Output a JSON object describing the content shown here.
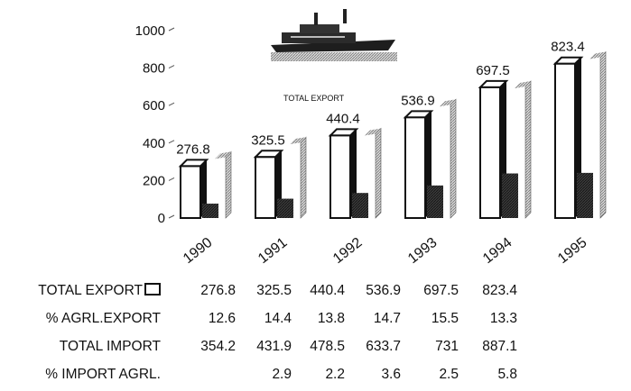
{
  "chart_data": {
    "type": "bar",
    "categories": [
      "1990",
      "1991",
      "1992",
      "1993",
      "1994",
      "1995"
    ],
    "series": [
      {
        "name": "TOTAL EXPORT",
        "values": [
          276.8,
          325.5,
          440.4,
          536.9,
          697.5,
          823.4
        ]
      },
      {
        "name": "% AGRL.EXPORT",
        "values": [
          12.6,
          14.4,
          13.8,
          14.7,
          15.5,
          13.3
        ]
      },
      {
        "name": "TOTAL IMPORT",
        "values": [
          354.2,
          431.9,
          478.5,
          633.7,
          731,
          887.1
        ]
      },
      {
        "name": "% IMPORT AGRL.",
        "values": [
          null,
          2.9,
          2.2,
          3.6,
          2.5,
          5.8
        ]
      }
    ],
    "data_labels": [
      "276.8",
      "325.5",
      "440.4",
      "536.9",
      "697.5",
      "823.4"
    ],
    "yticks": [
      "0",
      "200",
      "400",
      "600",
      "800",
      "1000"
    ],
    "ylim": [
      0,
      1000
    ],
    "annotation": "TOTAL EXPORT",
    "colors": {
      "bar_face": "#ffffff",
      "bar_outline": "#111111",
      "dark_bar": "#2a2a2a",
      "hatch": "#888888"
    }
  },
  "table": {
    "rows": [
      {
        "label": "TOTAL EXPORT",
        "legend_icon": "hollow-box",
        "values": [
          "276.8",
          "325.5",
          "440.4",
          "536.9",
          "697.5",
          "823.4"
        ]
      },
      {
        "label": "% AGRL.EXPORT",
        "values": [
          "12.6",
          "14.4",
          "13.8",
          "14.7",
          "15.5",
          "13.3"
        ]
      },
      {
        "label": "TOTAL IMPORT",
        "values": [
          "354.2",
          "431.9",
          "478.5",
          "633.7",
          "731",
          "887.1"
        ]
      },
      {
        "label": "% IMPORT AGRL.",
        "values": [
          "",
          "2.9",
          "2.2",
          "3.6",
          "2.5",
          "5.8"
        ]
      }
    ]
  },
  "icons": {
    "ship": "ship-icon"
  }
}
